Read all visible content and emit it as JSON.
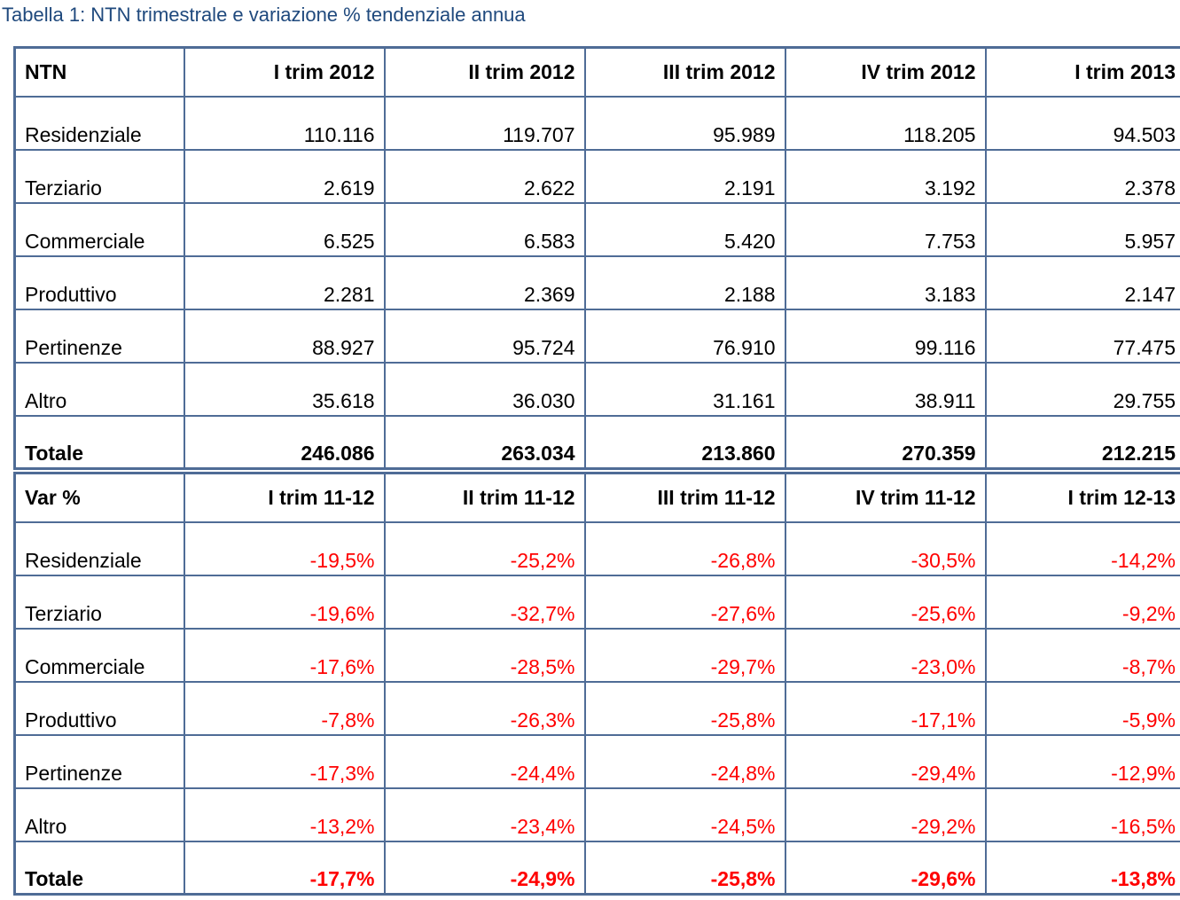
{
  "caption": "Tabella 1: NTN trimestrale e variazione % tendenziale annua",
  "colors": {
    "caption": "#1F497D",
    "border": "#4F6C96",
    "negative": "#FF0000"
  },
  "ntn_table": {
    "header": [
      "NTN",
      "I trim 2012",
      "II trim 2012",
      "III trim 2012",
      "IV trim 2012",
      "I trim 2013"
    ],
    "rows": [
      {
        "label": "Residenziale",
        "values": [
          "110.116",
          "119.707",
          "95.989",
          "118.205",
          "94.503"
        ]
      },
      {
        "label": "Terziario",
        "values": [
          "2.619",
          "2.622",
          "2.191",
          "3.192",
          "2.378"
        ]
      },
      {
        "label": "Commerciale",
        "values": [
          "6.525",
          "6.583",
          "5.420",
          "7.753",
          "5.957"
        ]
      },
      {
        "label": "Produttivo",
        "values": [
          "2.281",
          "2.369",
          "2.188",
          "3.183",
          "2.147"
        ]
      },
      {
        "label": "Pertinenze",
        "values": [
          "88.927",
          "95.724",
          "76.910",
          "99.116",
          "77.475"
        ]
      },
      {
        "label": "Altro",
        "values": [
          "35.618",
          "36.030",
          "31.161",
          "38.911",
          "29.755"
        ]
      },
      {
        "label": "Totale",
        "values": [
          "246.086",
          "263.034",
          "213.860",
          "270.359",
          "212.215"
        ]
      }
    ]
  },
  "var_table": {
    "header": [
      "Var %",
      "I trim 11-12",
      "II trim 11-12",
      "III trim 11-12",
      "IV trim 11-12",
      "I trim 12-13"
    ],
    "rows": [
      {
        "label": "Residenziale",
        "values": [
          "-19,5%",
          "-25,2%",
          "-26,8%",
          "-30,5%",
          "-14,2%"
        ]
      },
      {
        "label": "Terziario",
        "values": [
          "-19,6%",
          "-32,7%",
          "-27,6%",
          "-25,6%",
          "-9,2%"
        ]
      },
      {
        "label": "Commerciale",
        "values": [
          "-17,6%",
          "-28,5%",
          "-29,7%",
          "-23,0%",
          "-8,7%"
        ]
      },
      {
        "label": "Produttivo",
        "values": [
          "-7,8%",
          "-26,3%",
          "-25,8%",
          "-17,1%",
          "-5,9%"
        ]
      },
      {
        "label": "Pertinenze",
        "values": [
          "-17,3%",
          "-24,4%",
          "-24,8%",
          "-29,4%",
          "-12,9%"
        ]
      },
      {
        "label": "Altro",
        "values": [
          "-13,2%",
          "-23,4%",
          "-24,5%",
          "-29,2%",
          "-16,5%"
        ]
      },
      {
        "label": "Totale",
        "values": [
          "-17,7%",
          "-24,9%",
          "-25,8%",
          "-29,6%",
          "-13,8%"
        ]
      }
    ]
  }
}
